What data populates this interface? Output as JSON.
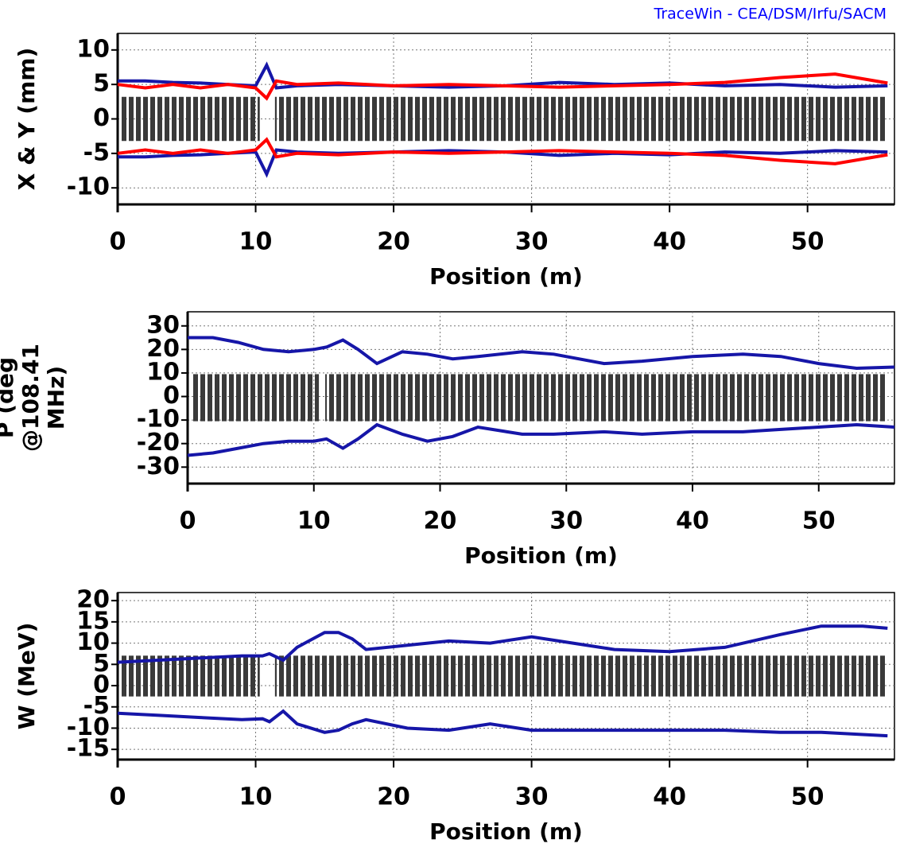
{
  "chart_data": [
    {
      "type": "line",
      "annotation": "TraceWin - CEA/DSM/Irfu/SACM",
      "xlabel": "Position (m)",
      "ylabel": "X & Y (mm)",
      "xlim": [
        0,
        56.3
      ],
      "xticks": [
        0,
        10,
        20,
        30,
        40,
        50
      ],
      "ylim": [
        -12.4,
        12.4
      ],
      "yticks": [
        10,
        5,
        0,
        -5,
        -10
      ],
      "grid": true,
      "x": [
        0,
        2,
        4,
        6,
        8,
        10,
        10.8,
        11.5,
        13,
        16,
        20,
        24,
        28,
        32,
        36,
        40,
        44,
        48,
        52,
        55.8
      ],
      "series": [
        {
          "color": "#1616a8",
          "values": [
            5.5,
            5.5,
            5.3,
            5.2,
            5.0,
            4.8,
            7.8,
            4.5,
            4.8,
            5.0,
            4.8,
            4.6,
            4.8,
            5.3,
            5.0,
            5.2,
            4.8,
            5.0,
            4.6,
            4.8
          ]
        },
        {
          "color": "#1616a8",
          "values": [
            -5.5,
            -5.5,
            -5.3,
            -5.2,
            -5.0,
            -4.8,
            -8.0,
            -4.5,
            -4.8,
            -5.0,
            -4.8,
            -4.6,
            -4.8,
            -5.3,
            -5.0,
            -5.2,
            -4.8,
            -5.0,
            -4.6,
            -4.8
          ]
        },
        {
          "color": "#ff0000",
          "values": [
            5.0,
            4.5,
            5.0,
            4.5,
            5.0,
            4.5,
            3.0,
            5.5,
            5.0,
            5.2,
            4.8,
            5.0,
            4.8,
            4.6,
            4.8,
            5.0,
            5.3,
            6.0,
            6.5,
            5.2
          ]
        },
        {
          "color": "#ff0000",
          "values": [
            -5.0,
            -4.5,
            -5.0,
            -4.5,
            -5.0,
            -4.5,
            -3.0,
            -5.5,
            -5.0,
            -5.2,
            -4.8,
            -5.0,
            -4.8,
            -4.6,
            -4.8,
            -5.0,
            -5.3,
            -6.0,
            -6.5,
            -5.2
          ]
        }
      ]
    },
    {
      "type": "line",
      "xlabel": "Position (m)",
      "ylabel": [
        "P (deg",
        "@108.41",
        "MHz)"
      ],
      "xlim": [
        0,
        56
      ],
      "xticks": [
        0,
        10,
        20,
        30,
        40,
        50
      ],
      "ylim": [
        -37,
        36
      ],
      "yticks": [
        30,
        20,
        10,
        0,
        -10,
        -20,
        -30
      ],
      "grid": true,
      "x": [
        0,
        2,
        4,
        6,
        8,
        10,
        11,
        12.3,
        13.5,
        15,
        17,
        19,
        21,
        23,
        26.5,
        29,
        33,
        36,
        40,
        44,
        47,
        50,
        53,
        56
      ],
      "series": [
        {
          "color": "#1616a8",
          "values": [
            25,
            25,
            23,
            20,
            19,
            20,
            21,
            24,
            20,
            14,
            19,
            18,
            16,
            17,
            19,
            18,
            14,
            15,
            17,
            18,
            17,
            14,
            12,
            12.5
          ]
        },
        {
          "color": "#1616a8",
          "values": [
            -25,
            -24,
            -22,
            -20,
            -19,
            -19,
            -18,
            -22,
            -18,
            -12,
            -16,
            -19,
            -17,
            -13,
            -16,
            -16,
            -15,
            -16,
            -15,
            -15,
            -14,
            -13,
            -12,
            -13
          ]
        }
      ]
    },
    {
      "type": "line",
      "xlabel": "Position (m)",
      "ylabel": "W (MeV)",
      "xlim": [
        0,
        56.3
      ],
      "xticks": [
        0,
        10,
        20,
        30,
        40,
        50
      ],
      "ylim": [
        -17.4,
        21.9
      ],
      "yticks": [
        20,
        15,
        10,
        5,
        0,
        -5,
        -10,
        -15
      ],
      "grid": true,
      "x": [
        0,
        3,
        6,
        9,
        10.5,
        11,
        12,
        13,
        15,
        16,
        17,
        18,
        21,
        24,
        27,
        30,
        33,
        36,
        40,
        44,
        48,
        51,
        54,
        55.8
      ],
      "series": [
        {
          "color": "#1616a8",
          "values": [
            5.5,
            6,
            6.5,
            7,
            7,
            7.5,
            6,
            9,
            12.5,
            12.5,
            11,
            8.5,
            9.5,
            10.5,
            10,
            11.5,
            10,
            8.5,
            8,
            9,
            12,
            14,
            14,
            13.5
          ]
        },
        {
          "color": "#1616a8",
          "values": [
            -6.5,
            -7,
            -7.5,
            -8,
            -7.8,
            -8.5,
            -6,
            -9,
            -11,
            -10.5,
            -9,
            -8,
            -10,
            -10.5,
            -9,
            -10.5,
            -10.5,
            -10.5,
            -10.5,
            -10.5,
            -11,
            -11,
            -11.5,
            -11.8
          ]
        }
      ]
    }
  ]
}
